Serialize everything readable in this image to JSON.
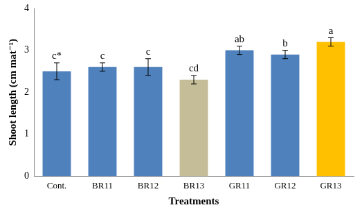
{
  "chart_data": {
    "type": "bar",
    "x_label": "Treatments",
    "y_label": "Shoot length (cm mat⁻¹)",
    "categories": [
      "Cont.",
      "BR11",
      "BR12",
      "BR13",
      "GR11",
      "GR12",
      "GR13"
    ],
    "values": [
      2.5,
      2.6,
      2.6,
      2.3,
      3.0,
      2.9,
      3.2
    ],
    "errors": [
      0.2,
      0.1,
      0.2,
      0.1,
      0.1,
      0.1,
      0.1
    ],
    "annotations": [
      "c*",
      "c",
      "c",
      "cd",
      "ab",
      "b",
      "a"
    ],
    "colors": [
      "#4f81bd",
      "#4f81bd",
      "#4f81bd",
      "#c4bd97",
      "#4f81bd",
      "#4f81bd",
      "#ffc000"
    ],
    "ylim": [
      0,
      4
    ],
    "yticks": [
      0,
      1,
      2,
      3,
      4
    ],
    "grid": false
  }
}
